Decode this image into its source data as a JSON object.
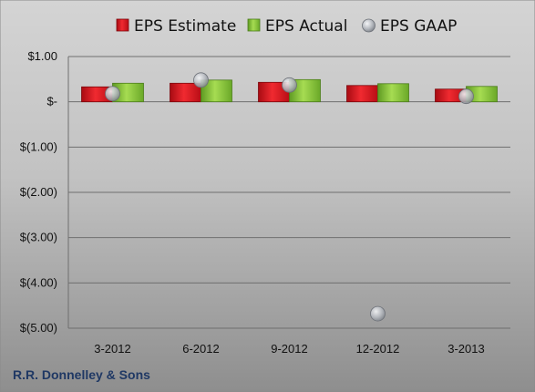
{
  "chart_data": {
    "type": "bar",
    "categories": [
      "3-2012",
      "6-2012",
      "9-2012",
      "12-2012",
      "3-2013"
    ],
    "series": [
      {
        "name": "EPS Estimate",
        "kind": "bar",
        "color": "#e0141e",
        "values": [
          0.33,
          0.41,
          0.43,
          0.36,
          0.28
        ]
      },
      {
        "name": "EPS Actual",
        "kind": "bar",
        "color": "#8cc43c",
        "values": [
          0.41,
          0.48,
          0.49,
          0.4,
          0.34
        ]
      },
      {
        "name": "EPS GAAP",
        "kind": "marker",
        "color": "#b8bcc2",
        "values": [
          0.18,
          0.48,
          0.37,
          -4.68,
          0.12
        ]
      }
    ],
    "yticks": [
      1.0,
      0.0,
      -1.0,
      -2.0,
      -3.0,
      -4.0,
      -5.0
    ],
    "ytick_labels": [
      "$1.00",
      "$-",
      "$(1.00)",
      "$(2.00)",
      "$(3.00)",
      "$(4.00)",
      "$(5.00)"
    ],
    "ylim": [
      -5.0,
      1.0
    ],
    "grid": true,
    "legend_position": "top",
    "footer": "R.R. Donnelley & Sons",
    "title": "",
    "xlabel": "",
    "ylabel": ""
  }
}
